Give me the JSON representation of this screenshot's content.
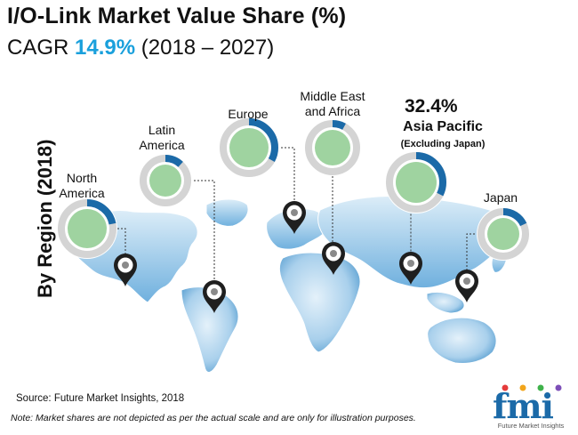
{
  "chart_data": {
    "type": "donut-map",
    "title": "I/O-Link Market Value Share (%)",
    "subtitle_prefix": "CAGR",
    "cagr": "14.9%",
    "period": "(2018 – 2027)",
    "axis_label": "By Region (2018)",
    "regions": [
      {
        "label": "North\nAmerica",
        "share_fraction": 0.22
      },
      {
        "label": "Latin\nAmerica",
        "share_fraction": 0.12
      },
      {
        "label": "Europe",
        "share_fraction": 0.33
      },
      {
        "label": "Middle East\nand Africa",
        "share_fraction": 0.08
      },
      {
        "label": "Asia Pacific",
        "sub_label": "(Excluding Japan)",
        "value_label": "32.4%",
        "share_fraction": 0.324
      },
      {
        "label": "Japan",
        "share_fraction": 0.18
      }
    ]
  },
  "footer": {
    "source": "Source: Future Market Insights, 2018",
    "note": "Note: Market shares are not depicted as per the actual scale and are only for illustration purposes."
  },
  "logo": {
    "text": "fmi",
    "tagline": "Future Market Insights"
  },
  "colors": {
    "accent_blue": "#1b6aa8",
    "cagr_blue": "#1aa0dc",
    "ring_gray": "#d4d4d4",
    "donut_center": "#9fd3a0",
    "map_light": "#cfe6f5",
    "map_dark": "#3f8fc8",
    "pin_dark": "#1f1f1f"
  }
}
